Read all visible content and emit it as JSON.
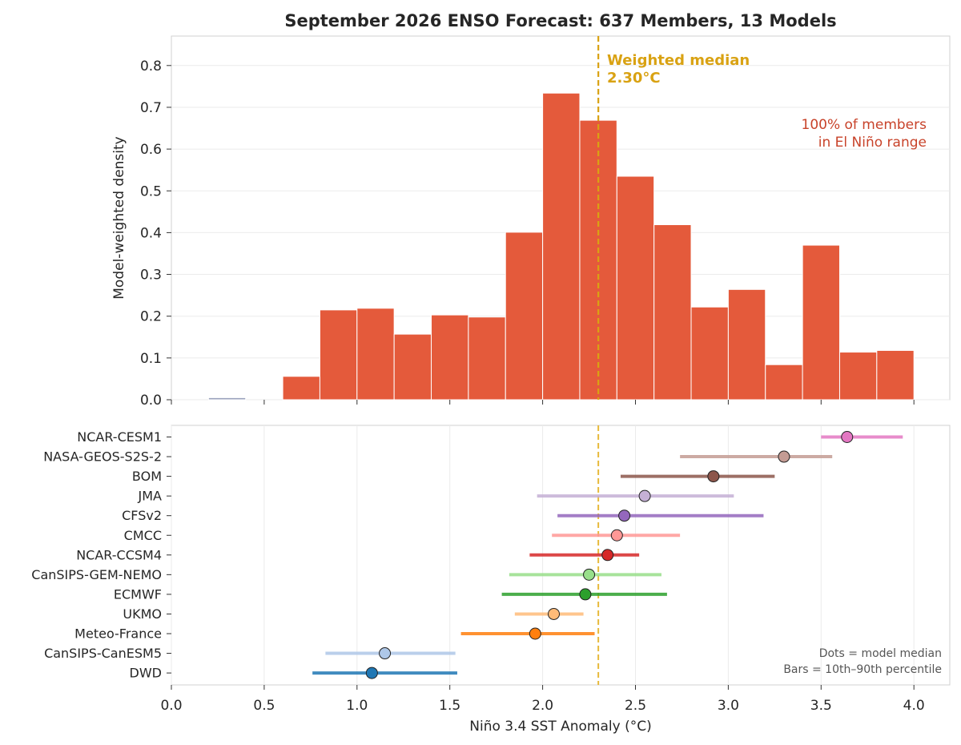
{
  "chart_data": [
    {
      "type": "bar",
      "panel": "histogram",
      "title": "September 2026 ENSO Forecast: 637 Members, 13 Models",
      "ylabel": "Model-weighted density",
      "xlim": [
        0.0,
        4.15
      ],
      "ylim": [
        0.0,
        0.87
      ],
      "xticks": [
        0.0,
        0.5,
        1.0,
        1.5,
        2.0,
        2.5,
        3.0,
        3.5,
        4.0
      ],
      "yticks": [
        "0.0",
        "0.1",
        "0.2",
        "0.3",
        "0.4",
        "0.5",
        "0.6",
        "0.7",
        "0.8"
      ],
      "grid": "horizontal",
      "bin_width": 0.2,
      "bins": [
        {
          "x0": 0.2,
          "value": 0.005,
          "category": "neutral"
        },
        {
          "x0": 0.6,
          "value": 0.056,
          "category": "el_nino"
        },
        {
          "x0": 0.8,
          "value": 0.215,
          "category": "el_nino"
        },
        {
          "x0": 1.0,
          "value": 0.219,
          "category": "el_nino"
        },
        {
          "x0": 1.2,
          "value": 0.157,
          "category": "el_nino"
        },
        {
          "x0": 1.4,
          "value": 0.203,
          "category": "el_nino"
        },
        {
          "x0": 1.6,
          "value": 0.198,
          "category": "el_nino"
        },
        {
          "x0": 1.8,
          "value": 0.401,
          "category": "el_nino"
        },
        {
          "x0": 2.0,
          "value": 0.734,
          "category": "el_nino"
        },
        {
          "x0": 2.2,
          "value": 0.669,
          "category": "el_nino"
        },
        {
          "x0": 2.4,
          "value": 0.535,
          "category": "el_nino"
        },
        {
          "x0": 2.6,
          "value": 0.419,
          "category": "el_nino"
        },
        {
          "x0": 2.8,
          "value": 0.222,
          "category": "el_nino"
        },
        {
          "x0": 3.0,
          "value": 0.264,
          "category": "el_nino"
        },
        {
          "x0": 3.2,
          "value": 0.084,
          "category": "el_nino"
        },
        {
          "x0": 3.4,
          "value": 0.37,
          "category": "el_nino"
        },
        {
          "x0": 3.6,
          "value": 0.114,
          "category": "el_nino"
        },
        {
          "x0": 3.8,
          "value": 0.118,
          "category": "el_nino"
        }
      ],
      "median_line": {
        "x": 2.3,
        "label_line1": "Weighted median",
        "label_line2": "2.30°C"
      },
      "annotation": {
        "line1": "100% of members",
        "line2": "in El Niño range"
      },
      "colors": {
        "el_nino": "#e45a3b",
        "neutral": "#9aa2bd",
        "median": "#d9a213",
        "annotation": "#c8432a"
      }
    },
    {
      "type": "scatter",
      "panel": "model_ranges",
      "xlabel": "Niño 3.4 SST Anomaly (°C)",
      "xlim": [
        0.0,
        4.15
      ],
      "xticks": [
        "0.0",
        "0.5",
        "1.0",
        "1.5",
        "2.0",
        "2.5",
        "3.0",
        "3.5",
        "4.0"
      ],
      "grid": "vertical",
      "median_line_x": 2.3,
      "models": [
        {
          "name": "NCAR-CESM1",
          "median": 3.64,
          "p10": 3.5,
          "p90": 3.94,
          "color": "#e377c2"
        },
        {
          "name": "NASA-GEOS-S2S-2",
          "median": 3.3,
          "p10": 2.74,
          "p90": 3.56,
          "color": "#c49c94"
        },
        {
          "name": "BOM",
          "median": 2.92,
          "p10": 2.42,
          "p90": 3.25,
          "color": "#8c564b"
        },
        {
          "name": "JMA",
          "median": 2.55,
          "p10": 1.97,
          "p90": 3.03,
          "color": "#c5b0d5"
        },
        {
          "name": "CFSv2",
          "median": 2.44,
          "p10": 2.08,
          "p90": 3.19,
          "color": "#9467bd"
        },
        {
          "name": "CMCC",
          "median": 2.4,
          "p10": 2.05,
          "p90": 2.74,
          "color": "#ff9896"
        },
        {
          "name": "NCAR-CCSM4",
          "median": 2.35,
          "p10": 1.93,
          "p90": 2.52,
          "color": "#d62728"
        },
        {
          "name": "CanSIPS-GEM-NEMO",
          "median": 2.25,
          "p10": 1.82,
          "p90": 2.64,
          "color": "#98df8a"
        },
        {
          "name": "ECMWF",
          "median": 2.23,
          "p10": 1.78,
          "p90": 2.67,
          "color": "#2ca02c"
        },
        {
          "name": "UKMO",
          "median": 2.06,
          "p10": 1.85,
          "p90": 2.22,
          "color": "#ffbb78"
        },
        {
          "name": "Meteo-France",
          "median": 1.96,
          "p10": 1.56,
          "p90": 2.28,
          "color": "#ff7f0e"
        },
        {
          "name": "CanSIPS-CanESM5",
          "median": 1.15,
          "p10": 0.83,
          "p90": 1.53,
          "color": "#aec7e8"
        },
        {
          "name": "DWD",
          "median": 1.08,
          "p10": 0.76,
          "p90": 1.54,
          "color": "#1f77b4"
        }
      ],
      "legend_note": {
        "line1": "Dots = model median",
        "line2": "Bars = 10th–90th percentile",
        "placement": "bottom-right"
      }
    }
  ]
}
